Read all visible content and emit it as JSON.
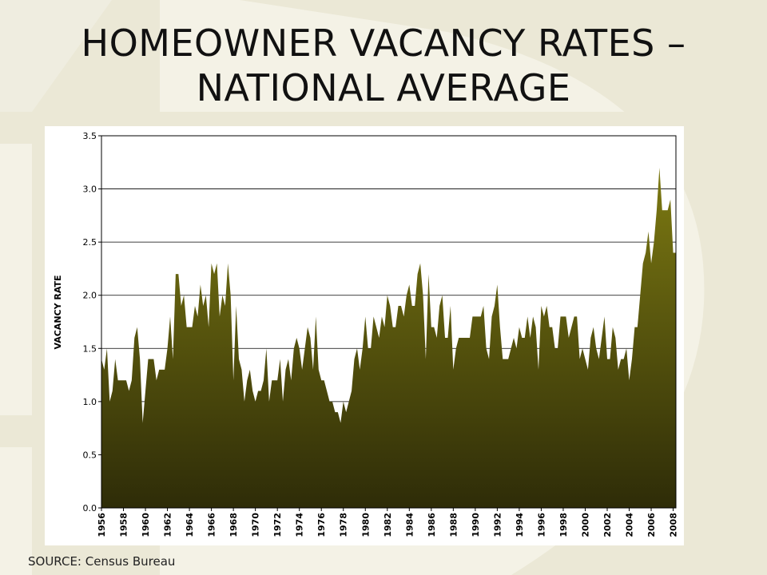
{
  "slide": {
    "title_line1": "HOMEOWNER VACANCY RATES –",
    "title_line2": "NATIONAL AVERAGE",
    "source": "SOURCE: Census Bureau"
  },
  "colors": {
    "background": "#f4f2e6",
    "watermark": "#e6e3cf",
    "area_top": "#7d7a12",
    "area_bottom": "#2e2c08"
  },
  "chart_data": {
    "type": "area",
    "title": "",
    "xlabel": "",
    "ylabel": "VACANCY RATE",
    "ylim": [
      0,
      3.5
    ],
    "y_ticks": [
      "0.0",
      "0.5",
      "1.0",
      "1.5",
      "2.0",
      "2.5",
      "3.0",
      "3.5"
    ],
    "x_tick_labels": [
      "1956",
      "1958",
      "1960",
      "1962",
      "1964",
      "1966",
      "1968",
      "1970",
      "1972",
      "1974",
      "1976",
      "1978",
      "1980",
      "1982",
      "1984",
      "1986",
      "1988",
      "1990",
      "1992",
      "1994",
      "1996",
      "1998",
      "2000",
      "2002",
      "2004",
      "2006",
      "2008"
    ],
    "grid": "horizontal",
    "legend": "none",
    "frequency": "quarterly",
    "start": "1956 Q1",
    "series": [
      {
        "values": [
          1.4,
          1.3,
          1.5,
          1.0,
          1.1,
          1.4,
          1.2,
          1.2,
          1.2,
          1.2,
          1.1,
          1.2,
          1.6,
          1.7,
          1.4,
          0.8,
          1.1,
          1.4,
          1.4,
          1.4,
          1.2,
          1.3,
          1.3,
          1.3,
          1.5,
          1.8,
          1.4,
          2.2,
          2.2,
          1.9,
          2.0,
          1.7,
          1.7,
          1.7,
          1.9,
          1.8,
          2.1,
          1.9,
          2.0,
          1.7,
          2.3,
          2.2,
          2.3,
          1.8,
          2.0,
          1.9,
          2.3,
          2.0,
          1.2,
          1.9,
          1.4,
          1.3,
          1.0,
          1.2,
          1.3,
          1.1,
          1.0,
          1.1,
          1.1,
          1.2,
          1.5,
          1.0,
          1.2,
          1.2,
          1.2,
          1.4,
          1.0,
          1.3,
          1.4,
          1.2,
          1.5,
          1.6,
          1.5,
          1.3,
          1.5,
          1.7,
          1.6,
          1.3,
          1.8,
          1.3,
          1.2,
          1.2,
          1.1,
          1.0,
          1.0,
          0.9,
          0.9,
          0.8,
          1.0,
          0.9,
          1.0,
          1.1,
          1.4,
          1.5,
          1.3,
          1.5,
          1.8,
          1.5,
          1.5,
          1.8,
          1.7,
          1.6,
          1.8,
          1.7,
          2.0,
          1.9,
          1.7,
          1.7,
          1.9,
          1.9,
          1.8,
          2.0,
          2.1,
          1.9,
          1.9,
          2.2,
          2.3,
          2.0,
          1.4,
          2.2,
          1.7,
          1.7,
          1.6,
          1.9,
          2.0,
          1.6,
          1.6,
          1.9,
          1.3,
          1.5,
          1.6,
          1.6,
          1.6,
          1.6,
          1.6,
          1.8,
          1.8,
          1.8,
          1.8,
          1.9,
          1.5,
          1.4,
          1.8,
          1.9,
          2.1,
          1.7,
          1.4,
          1.4,
          1.4,
          1.5,
          1.6,
          1.5,
          1.7,
          1.6,
          1.6,
          1.8,
          1.6,
          1.8,
          1.7,
          1.3,
          1.9,
          1.8,
          1.9,
          1.7,
          1.7,
          1.5,
          1.5,
          1.8,
          1.8,
          1.8,
          1.6,
          1.7,
          1.8,
          1.8,
          1.4,
          1.5,
          1.4,
          1.3,
          1.6,
          1.7,
          1.5,
          1.4,
          1.6,
          1.8,
          1.4,
          1.4,
          1.7,
          1.6,
          1.3,
          1.4,
          1.4,
          1.5,
          1.2,
          1.4,
          1.7,
          1.7,
          2.0,
          2.3,
          2.4,
          2.6,
          2.3,
          2.5,
          2.8,
          3.2,
          2.8,
          2.8,
          2.8,
          2.9,
          2.4,
          2.4
        ]
      }
    ]
  }
}
